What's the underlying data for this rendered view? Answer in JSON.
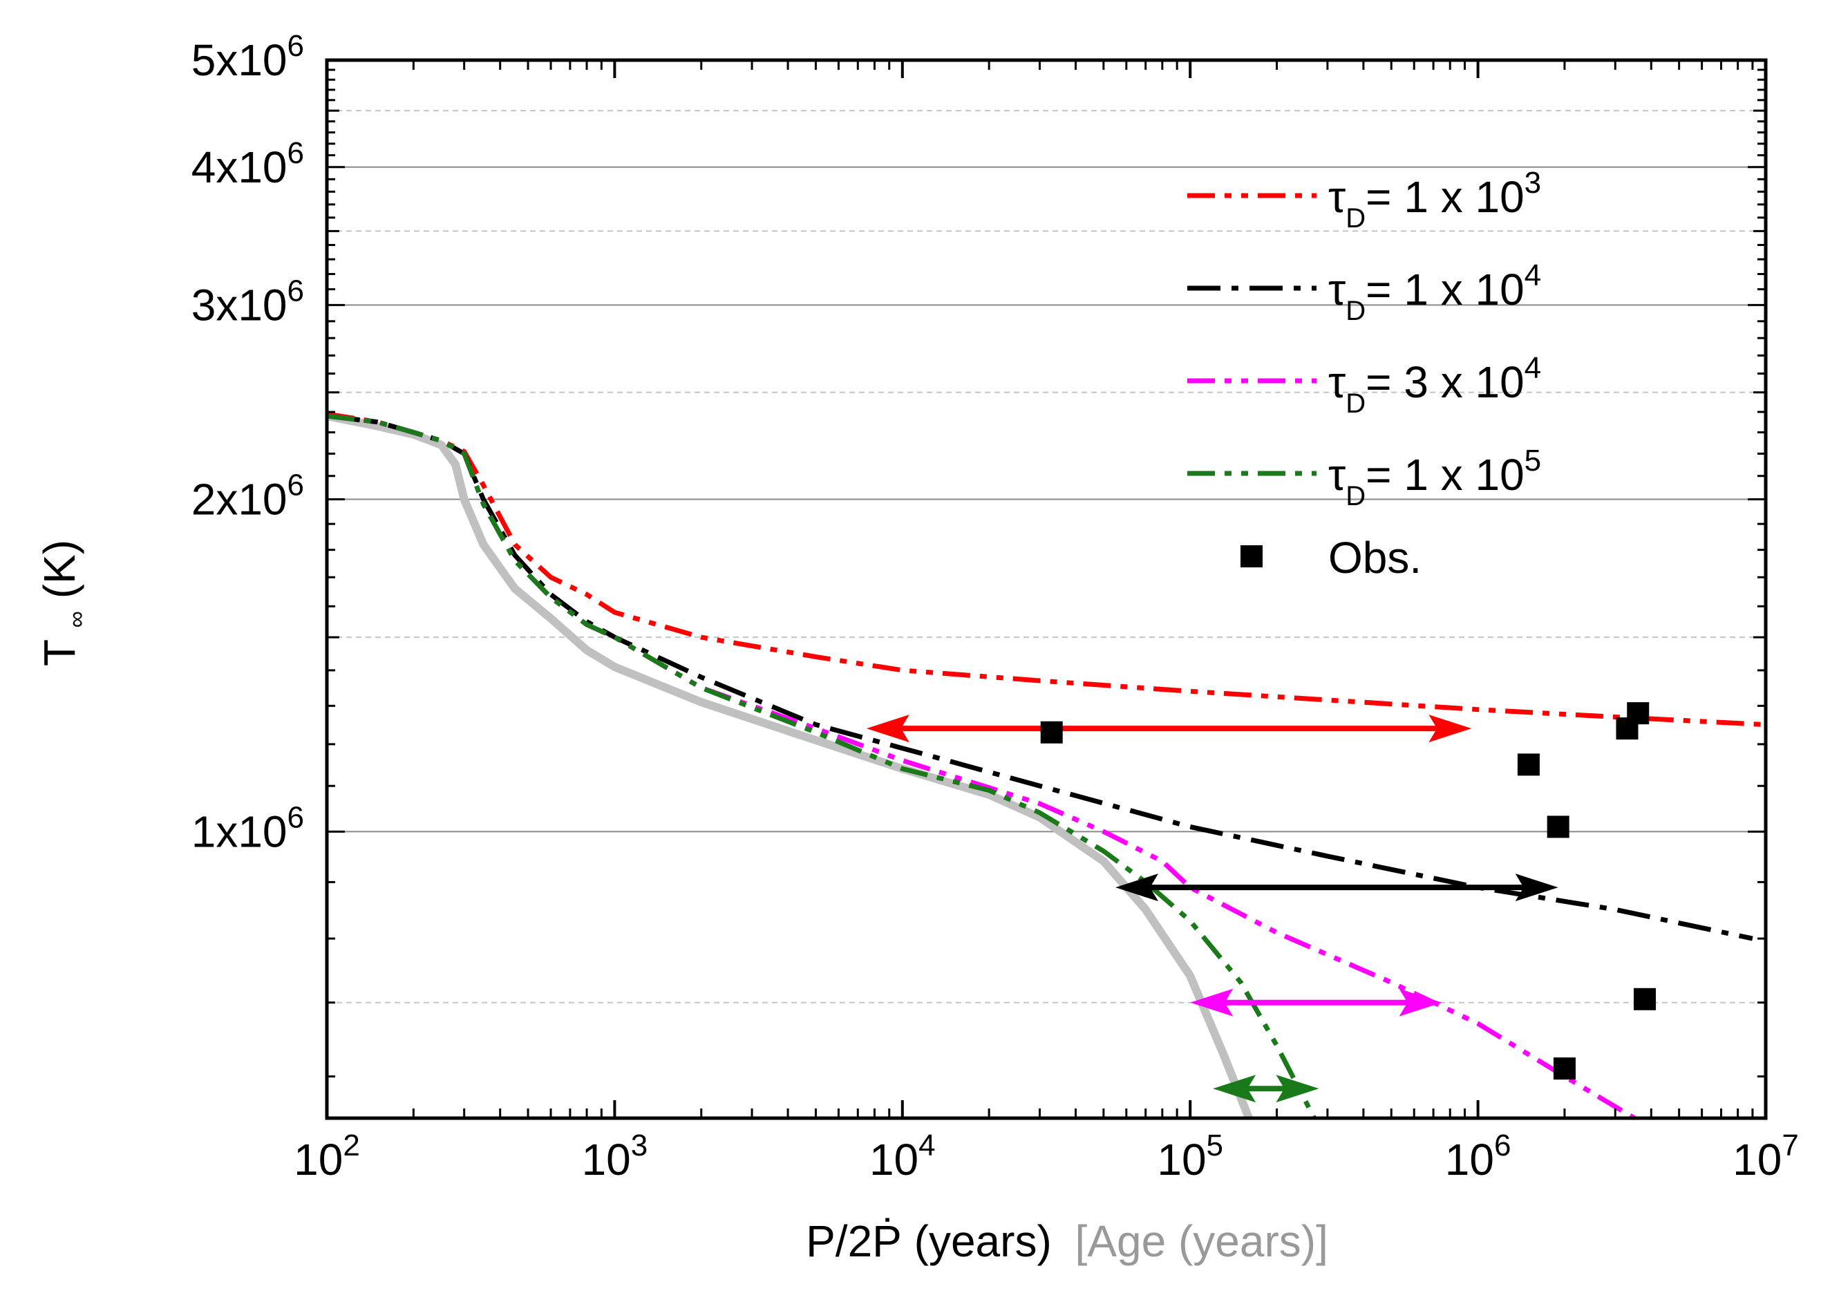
{
  "chart_data": {
    "type": "line",
    "xscale": "log",
    "yscale": "log",
    "xlim": [
      100,
      10000000
    ],
    "ylim": [
      550000,
      5000000
    ],
    "xlabel": {
      "main": "P/2Ṗ (years)",
      "secondary": "[Age (years)]",
      "secondary_color": "#999999"
    },
    "ylabel": {
      "main": "T",
      "sub": "∞",
      "rest": "(K)"
    },
    "x_ticks": [
      {
        "value": 100,
        "mant": "10",
        "exp": "2"
      },
      {
        "value": 1000,
        "mant": "10",
        "exp": "3"
      },
      {
        "value": 10000,
        "mant": "10",
        "exp": "4"
      },
      {
        "value": 100000,
        "mant": "10",
        "exp": "5"
      },
      {
        "value": 1000000,
        "mant": "10",
        "exp": "6"
      },
      {
        "value": 10000000,
        "mant": "10",
        "exp": "7"
      }
    ],
    "y_ticks": [
      {
        "value": 1000000,
        "mant": "1x10",
        "exp": "6"
      },
      {
        "value": 2000000,
        "mant": "2x10",
        "exp": "6"
      },
      {
        "value": 3000000,
        "mant": "3x10",
        "exp": "6"
      },
      {
        "value": 4000000,
        "mant": "4x10",
        "exp": "6"
      },
      {
        "value": 5000000,
        "mant": "5x10",
        "exp": "6"
      }
    ],
    "y_minor_gridlines": [
      700000,
      1500000,
      2500000,
      3500000,
      4500000
    ],
    "series": [
      {
        "name": "baseline",
        "color": "#c0c0c0",
        "dash": "solid",
        "in_legend": false,
        "points": [
          [
            100,
            2380000
          ],
          [
            150,
            2330000
          ],
          [
            200,
            2290000
          ],
          [
            250,
            2240000
          ],
          [
            280,
            2150000
          ],
          [
            300,
            2000000
          ],
          [
            350,
            1820000
          ],
          [
            450,
            1660000
          ],
          [
            600,
            1560000
          ],
          [
            800,
            1460000
          ],
          [
            1000,
            1410000
          ],
          [
            2000,
            1310000
          ],
          [
            5000,
            1210000
          ],
          [
            10000,
            1140000
          ],
          [
            20000,
            1080000
          ],
          [
            30000,
            1030000
          ],
          [
            50000,
            940000
          ],
          [
            70000,
            850000
          ],
          [
            100000,
            740000
          ],
          [
            130000,
            630000
          ],
          [
            160000,
            550000
          ]
        ]
      },
      {
        "name": "τD=1x10³",
        "label_pre": "τ",
        "label_sub": "D",
        "label_main": "= 1 x 10",
        "label_sup": "3",
        "color": "#ff0000",
        "dash": "dash-dot-dot",
        "in_legend": true,
        "points": [
          [
            100,
            2390000
          ],
          [
            150,
            2350000
          ],
          [
            200,
            2300000
          ],
          [
            250,
            2260000
          ],
          [
            300,
            2210000
          ],
          [
            350,
            2060000
          ],
          [
            450,
            1820000
          ],
          [
            600,
            1700000
          ],
          [
            800,
            1640000
          ],
          [
            1000,
            1580000
          ],
          [
            2000,
            1500000
          ],
          [
            5000,
            1440000
          ],
          [
            10000,
            1400000
          ],
          [
            30000,
            1370000
          ],
          [
            100000,
            1340000
          ],
          [
            1000000,
            1290000
          ],
          [
            3000000,
            1270000
          ],
          [
            10000000,
            1250000
          ]
        ]
      },
      {
        "name": "τD=1x10⁴",
        "label_pre": "τ",
        "label_sub": "D",
        "label_main": "= 1 x 10",
        "label_sup": "4",
        "color": "#000000",
        "dash": "dash-dot",
        "in_legend": true,
        "points": [
          [
            100,
            2380000
          ],
          [
            150,
            2350000
          ],
          [
            200,
            2300000
          ],
          [
            250,
            2260000
          ],
          [
            300,
            2200000
          ],
          [
            350,
            2000000
          ],
          [
            450,
            1780000
          ],
          [
            600,
            1640000
          ],
          [
            800,
            1550000
          ],
          [
            1000,
            1500000
          ],
          [
            2000,
            1380000
          ],
          [
            5000,
            1250000
          ],
          [
            10000,
            1190000
          ],
          [
            30000,
            1100000
          ],
          [
            100000,
            1010000
          ],
          [
            300000,
            950000
          ],
          [
            1000000,
            890000
          ],
          [
            3000000,
            850000
          ],
          [
            9000000,
            800000
          ]
        ]
      },
      {
        "name": "τD=3x10⁴",
        "label_pre": "τ",
        "label_sub": "D",
        "label_main": "= 3 x 10",
        "label_sup": "4",
        "color": "#ff00ff",
        "dash": "dash-dot-dot",
        "in_legend": true,
        "points": [
          [
            100,
            2380000
          ],
          [
            150,
            2350000
          ],
          [
            200,
            2300000
          ],
          [
            250,
            2260000
          ],
          [
            300,
            2200000
          ],
          [
            350,
            1980000
          ],
          [
            450,
            1760000
          ],
          [
            600,
            1630000
          ],
          [
            800,
            1540000
          ],
          [
            1000,
            1500000
          ],
          [
            2000,
            1350000
          ],
          [
            5000,
            1240000
          ],
          [
            10000,
            1160000
          ],
          [
            30000,
            1060000
          ],
          [
            50000,
            1000000
          ],
          [
            80000,
            940000
          ],
          [
            100000,
            890000
          ],
          [
            200000,
            810000
          ],
          [
            500000,
            730000
          ],
          [
            1000000,
            670000
          ],
          [
            2000000,
            600000
          ],
          [
            3500000,
            550000
          ]
        ]
      },
      {
        "name": "τD=1x10⁵",
        "label_pre": "τ",
        "label_sub": "D",
        "label_main": "= 1 x 10",
        "label_sup": "5",
        "color": "#1a7a1a",
        "dash": "dash-dot-dot",
        "in_legend": true,
        "points": [
          [
            100,
            2380000
          ],
          [
            150,
            2350000
          ],
          [
            200,
            2300000
          ],
          [
            250,
            2260000
          ],
          [
            300,
            2200000
          ],
          [
            350,
            1980000
          ],
          [
            450,
            1760000
          ],
          [
            600,
            1630000
          ],
          [
            800,
            1540000
          ],
          [
            1000,
            1500000
          ],
          [
            2000,
            1350000
          ],
          [
            5000,
            1230000
          ],
          [
            10000,
            1140000
          ],
          [
            20000,
            1090000
          ],
          [
            30000,
            1040000
          ],
          [
            50000,
            960000
          ],
          [
            70000,
            900000
          ],
          [
            100000,
            830000
          ],
          [
            150000,
            730000
          ],
          [
            200000,
            640000
          ],
          [
            270000,
            550000
          ]
        ]
      }
    ],
    "observations": {
      "name": "Obs.",
      "color": "#000000",
      "points": [
        [
          33000,
          1230000
        ],
        [
          1500000,
          1150000
        ],
        [
          1900000,
          1010000
        ],
        [
          3300000,
          1240000
        ],
        [
          3600000,
          1280000
        ],
        [
          3800000,
          705000
        ],
        [
          2000000,
          610000
        ]
      ]
    },
    "arrows": [
      {
        "color": "#ff0000",
        "from": [
          7500,
          1240000
        ],
        "to": [
          950000,
          1240000
        ]
      },
      {
        "color": "#000000",
        "from": [
          55000,
          890000
        ],
        "to": [
          1900000,
          890000
        ]
      },
      {
        "color": "#ff00ff",
        "from": [
          100000,
          700000
        ],
        "to": [
          750000,
          700000
        ]
      },
      {
        "color": "#1a7a1a",
        "from": [
          120000,
          585000
        ],
        "to": [
          280000,
          585000
        ]
      }
    ]
  }
}
